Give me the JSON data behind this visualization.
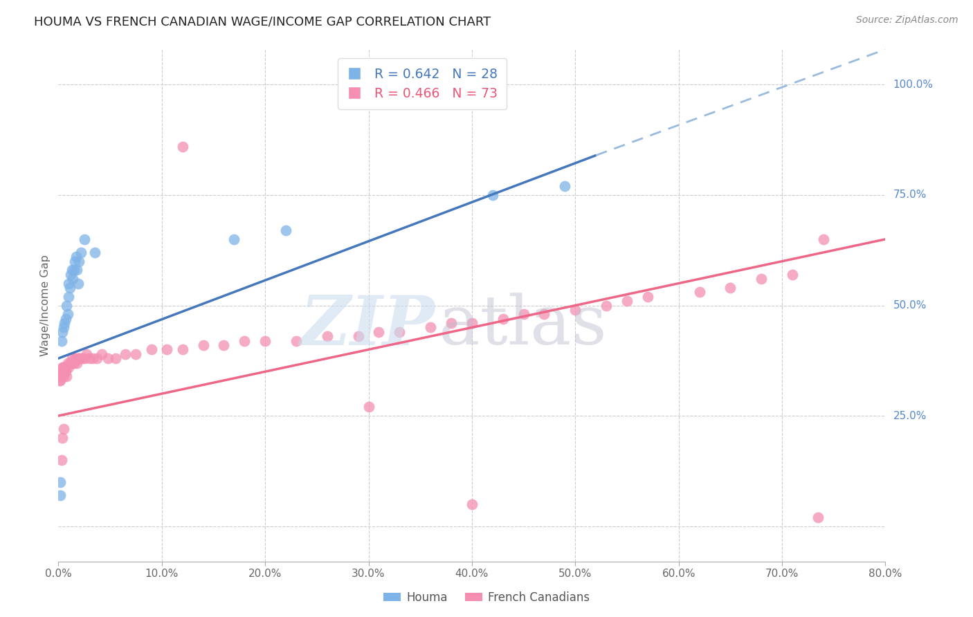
{
  "title": "HOUMA VS FRENCH CANADIAN WAGE/INCOME GAP CORRELATION CHART",
  "source": "Source: ZipAtlas.com",
  "ylabel": "Wage/Income Gap",
  "xlim": [
    0.0,
    80.0
  ],
  "ylim": [
    -8.0,
    108.0
  ],
  "houma_color": "#7EB3E8",
  "french_color": "#F48FB1",
  "blue_line_color": "#4477BB",
  "blue_dash_color": "#99BBDD",
  "pink_line_color": "#EE6688",
  "legend_blue_r": "R = 0.642",
  "legend_blue_n": "N = 28",
  "legend_pink_r": "R = 0.466",
  "legend_pink_n": "N = 73",
  "houma_x": [
    0.15,
    0.2,
    0.3,
    0.4,
    0.5,
    0.6,
    0.7,
    0.8,
    0.9,
    1.0,
    1.0,
    1.1,
    1.2,
    1.3,
    1.4,
    1.5,
    1.6,
    1.7,
    1.8,
    1.9,
    2.0,
    2.2,
    2.5,
    3.5,
    17.0,
    22.0,
    42.0,
    49.0
  ],
  "houma_y": [
    10.0,
    7.0,
    42.0,
    44.0,
    45.0,
    46.0,
    47.0,
    50.0,
    48.0,
    52.0,
    55.0,
    54.0,
    57.0,
    58.0,
    56.0,
    58.0,
    60.0,
    61.0,
    58.0,
    55.0,
    60.0,
    62.0,
    65.0,
    62.0,
    65.0,
    67.0,
    75.0,
    77.0
  ],
  "french_x": [
    0.1,
    0.15,
    0.2,
    0.25,
    0.3,
    0.35,
    0.4,
    0.45,
    0.5,
    0.55,
    0.6,
    0.65,
    0.7,
    0.75,
    0.8,
    0.9,
    1.0,
    1.1,
    1.2,
    1.3,
    1.4,
    1.5,
    1.6,
    1.7,
    1.8,
    1.9,
    2.0,
    2.1,
    2.3,
    2.5,
    2.7,
    3.0,
    3.3,
    3.7,
    4.2,
    4.8,
    5.5,
    6.5,
    7.5,
    9.0,
    10.5,
    12.0,
    14.0,
    16.0,
    18.0,
    20.0,
    23.0,
    26.0,
    29.0,
    31.0,
    33.0,
    36.0,
    38.0,
    40.0,
    43.0,
    45.0,
    47.0,
    50.0,
    53.0,
    55.0,
    57.0,
    62.0,
    65.0,
    68.0,
    71.0,
    74.0,
    12.0,
    0.4,
    0.5,
    0.3,
    30.0,
    40.0,
    73.5
  ],
  "french_y": [
    33.0,
    34.0,
    33.0,
    35.0,
    34.0,
    36.0,
    35.0,
    36.0,
    34.0,
    35.0,
    36.0,
    36.0,
    35.0,
    34.0,
    36.0,
    37.0,
    36.0,
    37.0,
    37.0,
    38.0,
    37.0,
    37.0,
    38.0,
    38.0,
    37.0,
    38.0,
    38.0,
    38.0,
    38.0,
    38.0,
    39.0,
    38.0,
    38.0,
    38.0,
    39.0,
    38.0,
    38.0,
    39.0,
    39.0,
    40.0,
    40.0,
    40.0,
    41.0,
    41.0,
    42.0,
    42.0,
    42.0,
    43.0,
    43.0,
    44.0,
    44.0,
    45.0,
    46.0,
    46.0,
    47.0,
    48.0,
    48.0,
    49.0,
    50.0,
    51.0,
    52.0,
    53.0,
    54.0,
    56.0,
    57.0,
    65.0,
    86.0,
    20.0,
    22.0,
    15.0,
    27.0,
    5.0,
    2.0
  ],
  "blue_line_x0": 0.0,
  "blue_line_y0": 38.0,
  "blue_line_x1": 52.0,
  "blue_line_y1": 84.0,
  "blue_dash_x0": 52.0,
  "blue_dash_y0": 84.0,
  "blue_dash_x1": 80.0,
  "blue_dash_y1": 108.0,
  "pink_line_x0": 0.0,
  "pink_line_y0": 25.0,
  "pink_line_x1": 80.0,
  "pink_line_y1": 65.0
}
